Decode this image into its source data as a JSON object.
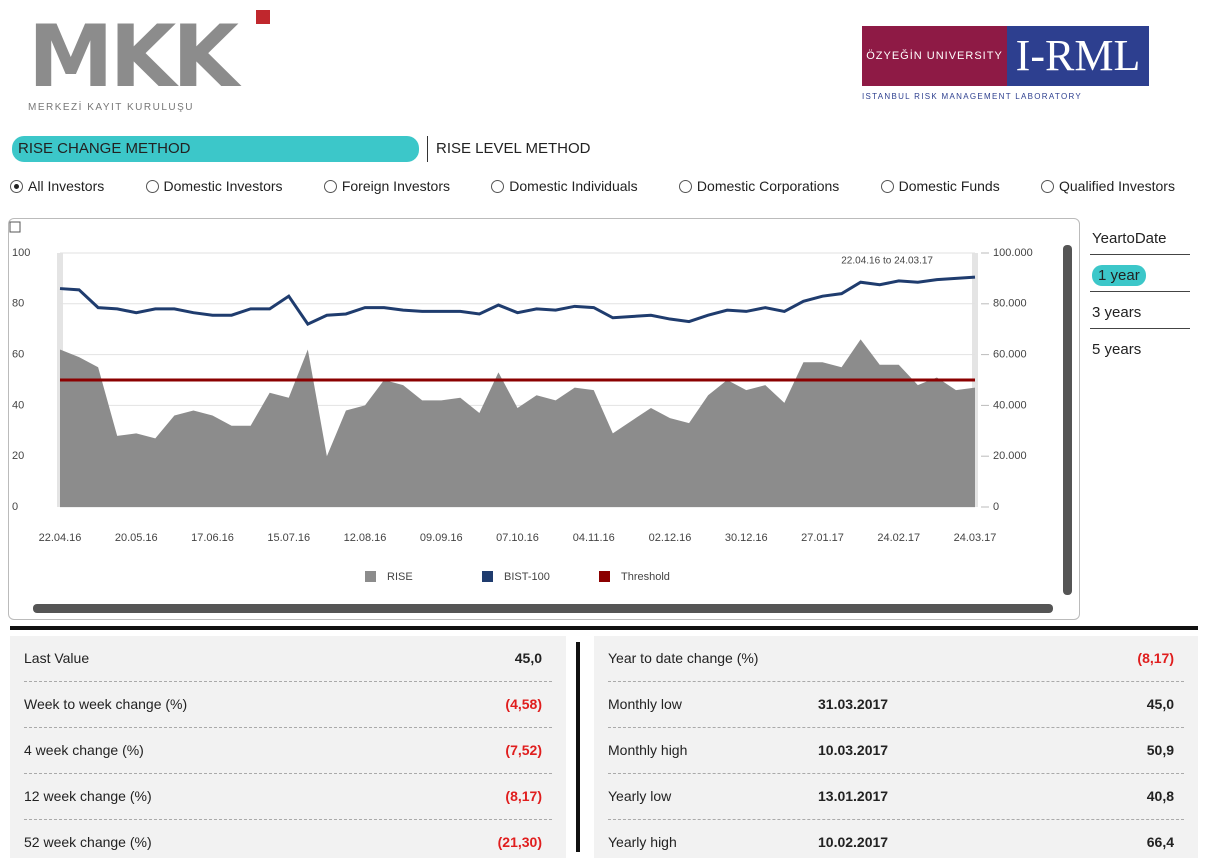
{
  "header": {
    "left_logo": {
      "text": "MKK",
      "subtitle": "MERKEZİ KAYIT KURULUŞU"
    },
    "right_logo": {
      "university": "ÖZYEĞİN UNIVERSITY",
      "name": "I-RML",
      "subtitle": "ISTANBUL RISK MANAGEMENT LABORATORY"
    }
  },
  "tabs": [
    {
      "label": "RISE CHANGE METHOD",
      "active": true
    },
    {
      "label": "RISE LEVEL METHOD",
      "active": false
    }
  ],
  "investor_options": [
    {
      "label": "All Investors",
      "selected": true
    },
    {
      "label": "Domestic Investors",
      "selected": false
    },
    {
      "label": "Foreign Investors",
      "selected": false
    },
    {
      "label": "Domestic Individuals",
      "selected": false
    },
    {
      "label": "Domestic Corporations",
      "selected": false
    },
    {
      "label": "Domestic Funds",
      "selected": false
    },
    {
      "label": "Qualified Investors",
      "selected": false
    }
  ],
  "period_options": [
    {
      "label": "YeartoDate",
      "selected": false
    },
    {
      "label": "1 year",
      "selected": true
    },
    {
      "label": "3 years",
      "selected": false
    },
    {
      "label": "5 years",
      "selected": false
    }
  ],
  "chart_data": {
    "type": "area-line",
    "annotation": "22.04.16 to 24.03.17",
    "categories": [
      "22.04.16",
      null,
      null,
      null,
      "20.05.16",
      null,
      null,
      null,
      "17.06.16",
      null,
      null,
      null,
      "15.07.16",
      null,
      null,
      null,
      "12.08.16",
      null,
      null,
      null,
      "09.09.16",
      null,
      null,
      null,
      "07.10.16",
      null,
      null,
      null,
      "04.11.16",
      null,
      null,
      null,
      "02.12.16",
      null,
      null,
      null,
      "30.12.16",
      null,
      null,
      null,
      "27.01.17",
      null,
      null,
      null,
      "24.02.17",
      null,
      null,
      null,
      "24.03.17"
    ],
    "series": [
      {
        "name": "RISE",
        "color": "#8c8c8c",
        "kind": "area",
        "values": [
          62,
          59,
          55,
          28,
          29,
          27,
          36,
          38,
          36,
          32,
          32,
          45,
          43,
          62,
          20,
          38,
          40,
          50,
          48,
          42,
          42,
          43,
          37,
          53,
          39,
          44,
          42,
          47,
          46,
          29,
          34,
          39,
          35,
          33,
          44,
          50,
          46,
          48,
          41,
          57,
          57,
          55,
          66,
          56,
          56,
          48,
          51,
          46,
          47
        ]
      },
      {
        "name": "BIST-100",
        "color": "#1f3c6e",
        "kind": "line",
        "axis": "y2",
        "values": [
          86000,
          85500,
          78500,
          78000,
          76500,
          78000,
          78000,
          76500,
          75500,
          75500,
          78000,
          78000,
          83000,
          72000,
          75500,
          76000,
          78500,
          78500,
          77500,
          77000,
          77000,
          77000,
          76000,
          79500,
          76500,
          78000,
          77500,
          79000,
          78500,
          74500,
          75000,
          75500,
          74000,
          73000,
          75500,
          77500,
          77000,
          78500,
          77000,
          81000,
          83000,
          84000,
          88500,
          87500,
          89000,
          88500,
          89500,
          90000,
          90500
        ]
      }
    ],
    "threshold": {
      "name": "Threshold",
      "color": "#8b0000",
      "value": 50
    },
    "ylim": [
      0,
      100
    ],
    "yticks": [
      0,
      20,
      40,
      60,
      80,
      100
    ],
    "y2lim": [
      0,
      100000
    ],
    "y2ticks": [
      0,
      {
        "value": 20000,
        "label": "20.000"
      },
      {
        "value": 40000,
        "label": "40.000"
      },
      {
        "value": 60000,
        "label": "60.000"
      },
      {
        "value": 80000,
        "label": "80.000"
      },
      {
        "value": 100000,
        "label": "100.000"
      }
    ],
    "grid": true
  },
  "stats_left": [
    {
      "label": "Last Value",
      "value": "45,0",
      "color": "#222222"
    },
    {
      "label": "Week to week change (%)",
      "value": "(4,58)",
      "color": "#e01e1e"
    },
    {
      "label": "4 week change (%)",
      "value": "(7,52)",
      "color": "#e01e1e"
    },
    {
      "label": "12 week change (%)",
      "value": "(8,17)",
      "color": "#e01e1e"
    },
    {
      "label": "52 week change (%)",
      "value": "(21,30)",
      "color": "#e01e1e"
    }
  ],
  "stats_right": [
    {
      "label": "Year to date change (%)",
      "date": null,
      "value": "(8,17)",
      "color": "#e01e1e"
    },
    {
      "label": "Monthly low",
      "date": "31.03.2017",
      "value": "45,0",
      "color": "#222222"
    },
    {
      "label": "Monthly high",
      "date": "10.03.2017",
      "value": "50,9",
      "color": "#222222"
    },
    {
      "label": "Yearly low",
      "date": "13.01.2017",
      "value": "40,8",
      "color": "#222222"
    },
    {
      "label": "Yearly high",
      "date": "10.02.2017",
      "value": "66,4",
      "color": "#222222"
    }
  ]
}
